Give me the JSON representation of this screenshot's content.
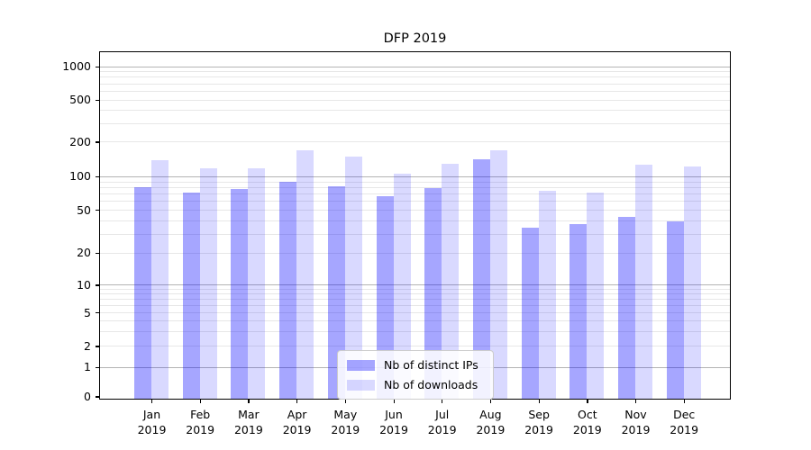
{
  "title": "DFP 2019",
  "chart_data": {
    "type": "bar",
    "title": "DFP 2019",
    "categories": [
      "Jan",
      "Feb",
      "Mar",
      "Apr",
      "May",
      "Jun",
      "Jul",
      "Aug",
      "Sep",
      "Oct",
      "Nov",
      "Dec"
    ],
    "category_year": "2019",
    "series": [
      {
        "name": "Nb of distinct IPs",
        "color": "rgba(0,0,255,0.35)",
        "values": [
          82,
          73,
          78,
          91,
          83,
          68,
          80,
          144,
          35,
          38,
          44,
          40
        ]
      },
      {
        "name": "Nb of downloads",
        "color": "rgba(0,0,255,0.15)",
        "values": [
          140,
          119,
          120,
          172,
          150,
          107,
          131,
          170,
          76,
          73,
          128,
          123
        ]
      }
    ],
    "xlabel": "",
    "ylabel": "",
    "yscale": "symlog",
    "yticks": [
      0,
      1,
      2,
      5,
      10,
      20,
      50,
      100,
      200,
      500,
      1000
    ],
    "ylim": [
      0,
      1280
    ],
    "grid": true,
    "legend_position": "lower center"
  }
}
